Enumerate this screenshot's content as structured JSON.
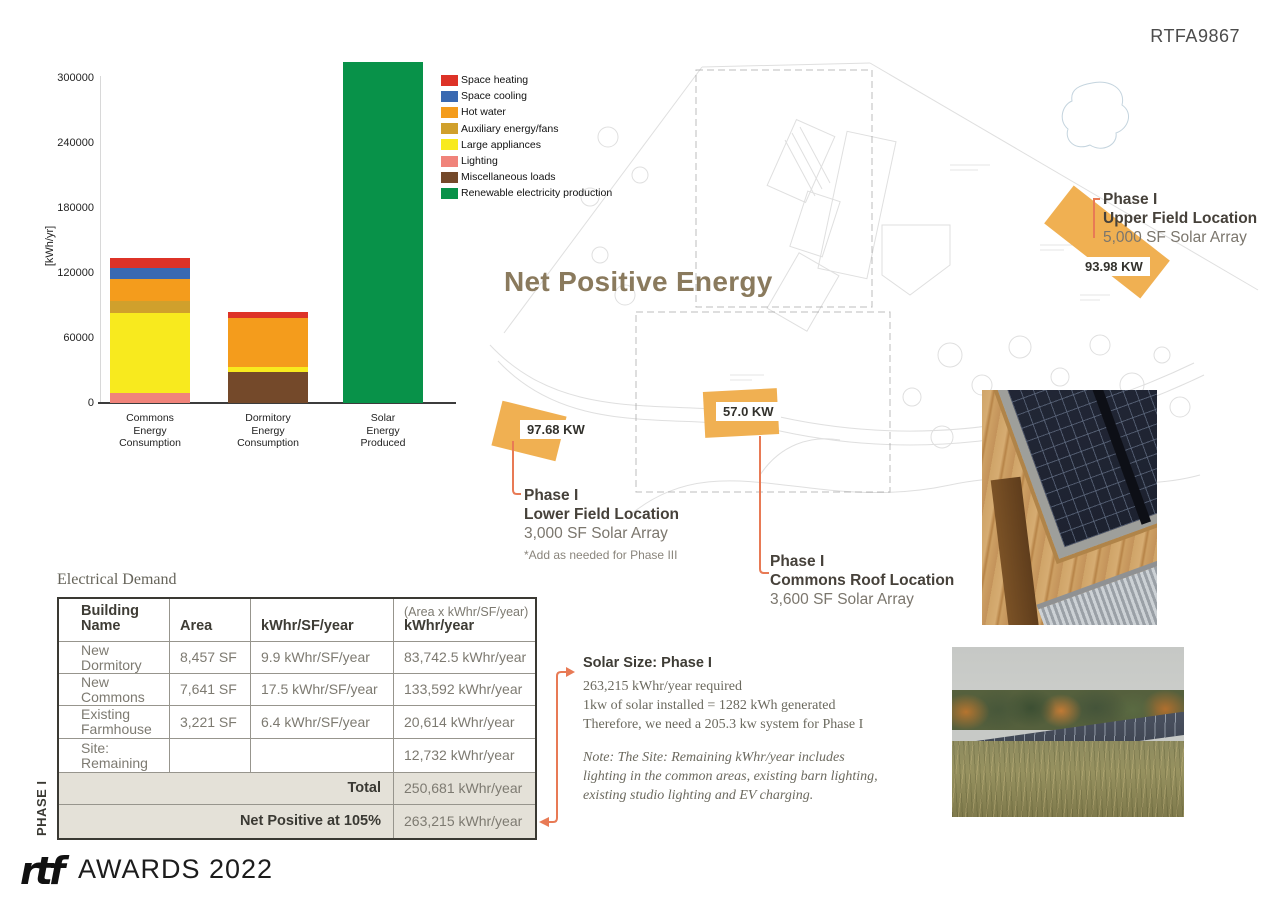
{
  "page": {
    "code": "RTFA9867",
    "title": "Net Positive Energy"
  },
  "chart_data": {
    "type": "bar",
    "subtype": "stacked",
    "ylabel": "[kWh/yr]",
    "ylim": [
      0,
      300000
    ],
    "yticks": [
      0,
      60000,
      120000,
      180000,
      240000,
      300000
    ],
    "legend": [
      {
        "label": "Space heating",
        "color": "#dd3227"
      },
      {
        "label": "Space cooling",
        "color": "#3a69b1"
      },
      {
        "label": "Hot water",
        "color": "#f49c1c"
      },
      {
        "label": "Auxiliary energy/fans",
        "color": "#d0a02c"
      },
      {
        "label": "Large appliances",
        "color": "#f8ea1e"
      },
      {
        "label": "Lighting",
        "color": "#f0837a"
      },
      {
        "label": "Miscellaneous loads",
        "color": "#74492a"
      },
      {
        "label": "Renewable electricity production",
        "color": "#089249"
      }
    ],
    "bars": [
      {
        "category": [
          "Commons",
          "Energy",
          "Consumption"
        ],
        "total_approx": 133600,
        "segments": [
          {
            "name": "Lighting",
            "value": 9600,
            "color": "#f0837a"
          },
          {
            "name": "Large appliances",
            "value": 73300,
            "color": "#f8ea1e"
          },
          {
            "name": "Auxiliary energy/fans",
            "value": 11400,
            "color": "#d0a02c"
          },
          {
            "name": "Hot water",
            "value": 20300,
            "color": "#f49c1c"
          },
          {
            "name": "Space cooling",
            "value": 9900,
            "color": "#3a69b1"
          },
          {
            "name": "Space heating",
            "value": 9100,
            "color": "#dd3227"
          }
        ]
      },
      {
        "category": [
          "Dormitory",
          "Energy",
          "Consumption"
        ],
        "total_approx": 83700,
        "segments": [
          {
            "name": "Miscellaneous loads",
            "value": 28700,
            "color": "#74492a"
          },
          {
            "name": "Large appliances",
            "value": 4100,
            "color": "#f8ea1e"
          },
          {
            "name": "Hot water",
            "value": 45500,
            "color": "#f49c1c"
          },
          {
            "name": "Space heating",
            "value": 5400,
            "color": "#dd3227"
          }
        ]
      },
      {
        "category": [
          "Solar",
          "Energy",
          "Produced"
        ],
        "total_approx": 315000,
        "segments": [
          {
            "name": "Renewable electricity production",
            "value": 315000,
            "color": "#089249"
          }
        ]
      }
    ]
  },
  "annotations": {
    "upper_field": {
      "phase": "Phase I",
      "name": "Upper Field Location",
      "detail": "5,000 SF Solar Array",
      "kw": "93.98 KW"
    },
    "lower_field": {
      "phase": "Phase I",
      "name": "Lower Field Location",
      "detail": "3,000 SF Solar Array",
      "note": "*Add as needed for Phase III",
      "kw": "97.68 KW"
    },
    "commons_roof": {
      "phase": "Phase I",
      "name": "Commons Roof Location",
      "detail": "3,600 SF Solar Array",
      "kw": "57.0 KW"
    }
  },
  "table": {
    "title": "Electrical Demand",
    "phase_label": "PHASE I",
    "headers": {
      "building": "Building Name",
      "area": "Area",
      "intensity": "kWhr/SF/year",
      "annual_formula": "(Area x kWhr/SF/year)",
      "annual": "kWhr/year"
    },
    "rows": [
      {
        "building": "New Dormitory",
        "area": "8,457 SF",
        "intensity": "9.9 kWhr/SF/year",
        "annual": "83,742.5 kWhr/year"
      },
      {
        "building": "New Commons",
        "area": "7,641 SF",
        "intensity": "17.5 kWhr/SF/year",
        "annual": "133,592 kWhr/year"
      },
      {
        "building": "Existing Farmhouse",
        "area": "3,221 SF",
        "intensity": "6.4 kWhr/SF/year",
        "annual": "20,614 kWhr/year"
      },
      {
        "building": "Site: Remaining",
        "area": "",
        "intensity": "",
        "annual": "12,732 kWhr/year"
      }
    ],
    "total": {
      "label": "Total",
      "value": "250,681 kWhr/year"
    },
    "net_positive": {
      "label": "Net Positive at 105%",
      "value": "263,215 kWhr/year"
    }
  },
  "solar_size": {
    "title": "Solar Size: Phase I",
    "lines": [
      "263,215 kWhr/year required",
      "1kw of solar installed = 1282 kWh generated",
      "Therefore, we need a 205.3 kw system for Phase I"
    ],
    "note_lines": [
      "Note: The Site: Remaining kWhr/year includes",
      "lighting in the common areas, existing barn lighting,",
      "existing studio lighting and EV charging."
    ]
  },
  "footer": {
    "logo": "rtf",
    "text": "AWARDS 2022"
  },
  "colors": {
    "accent_orange": "#f0b052",
    "connector": "#e87a55",
    "title_brown": "#8a7a5d"
  }
}
